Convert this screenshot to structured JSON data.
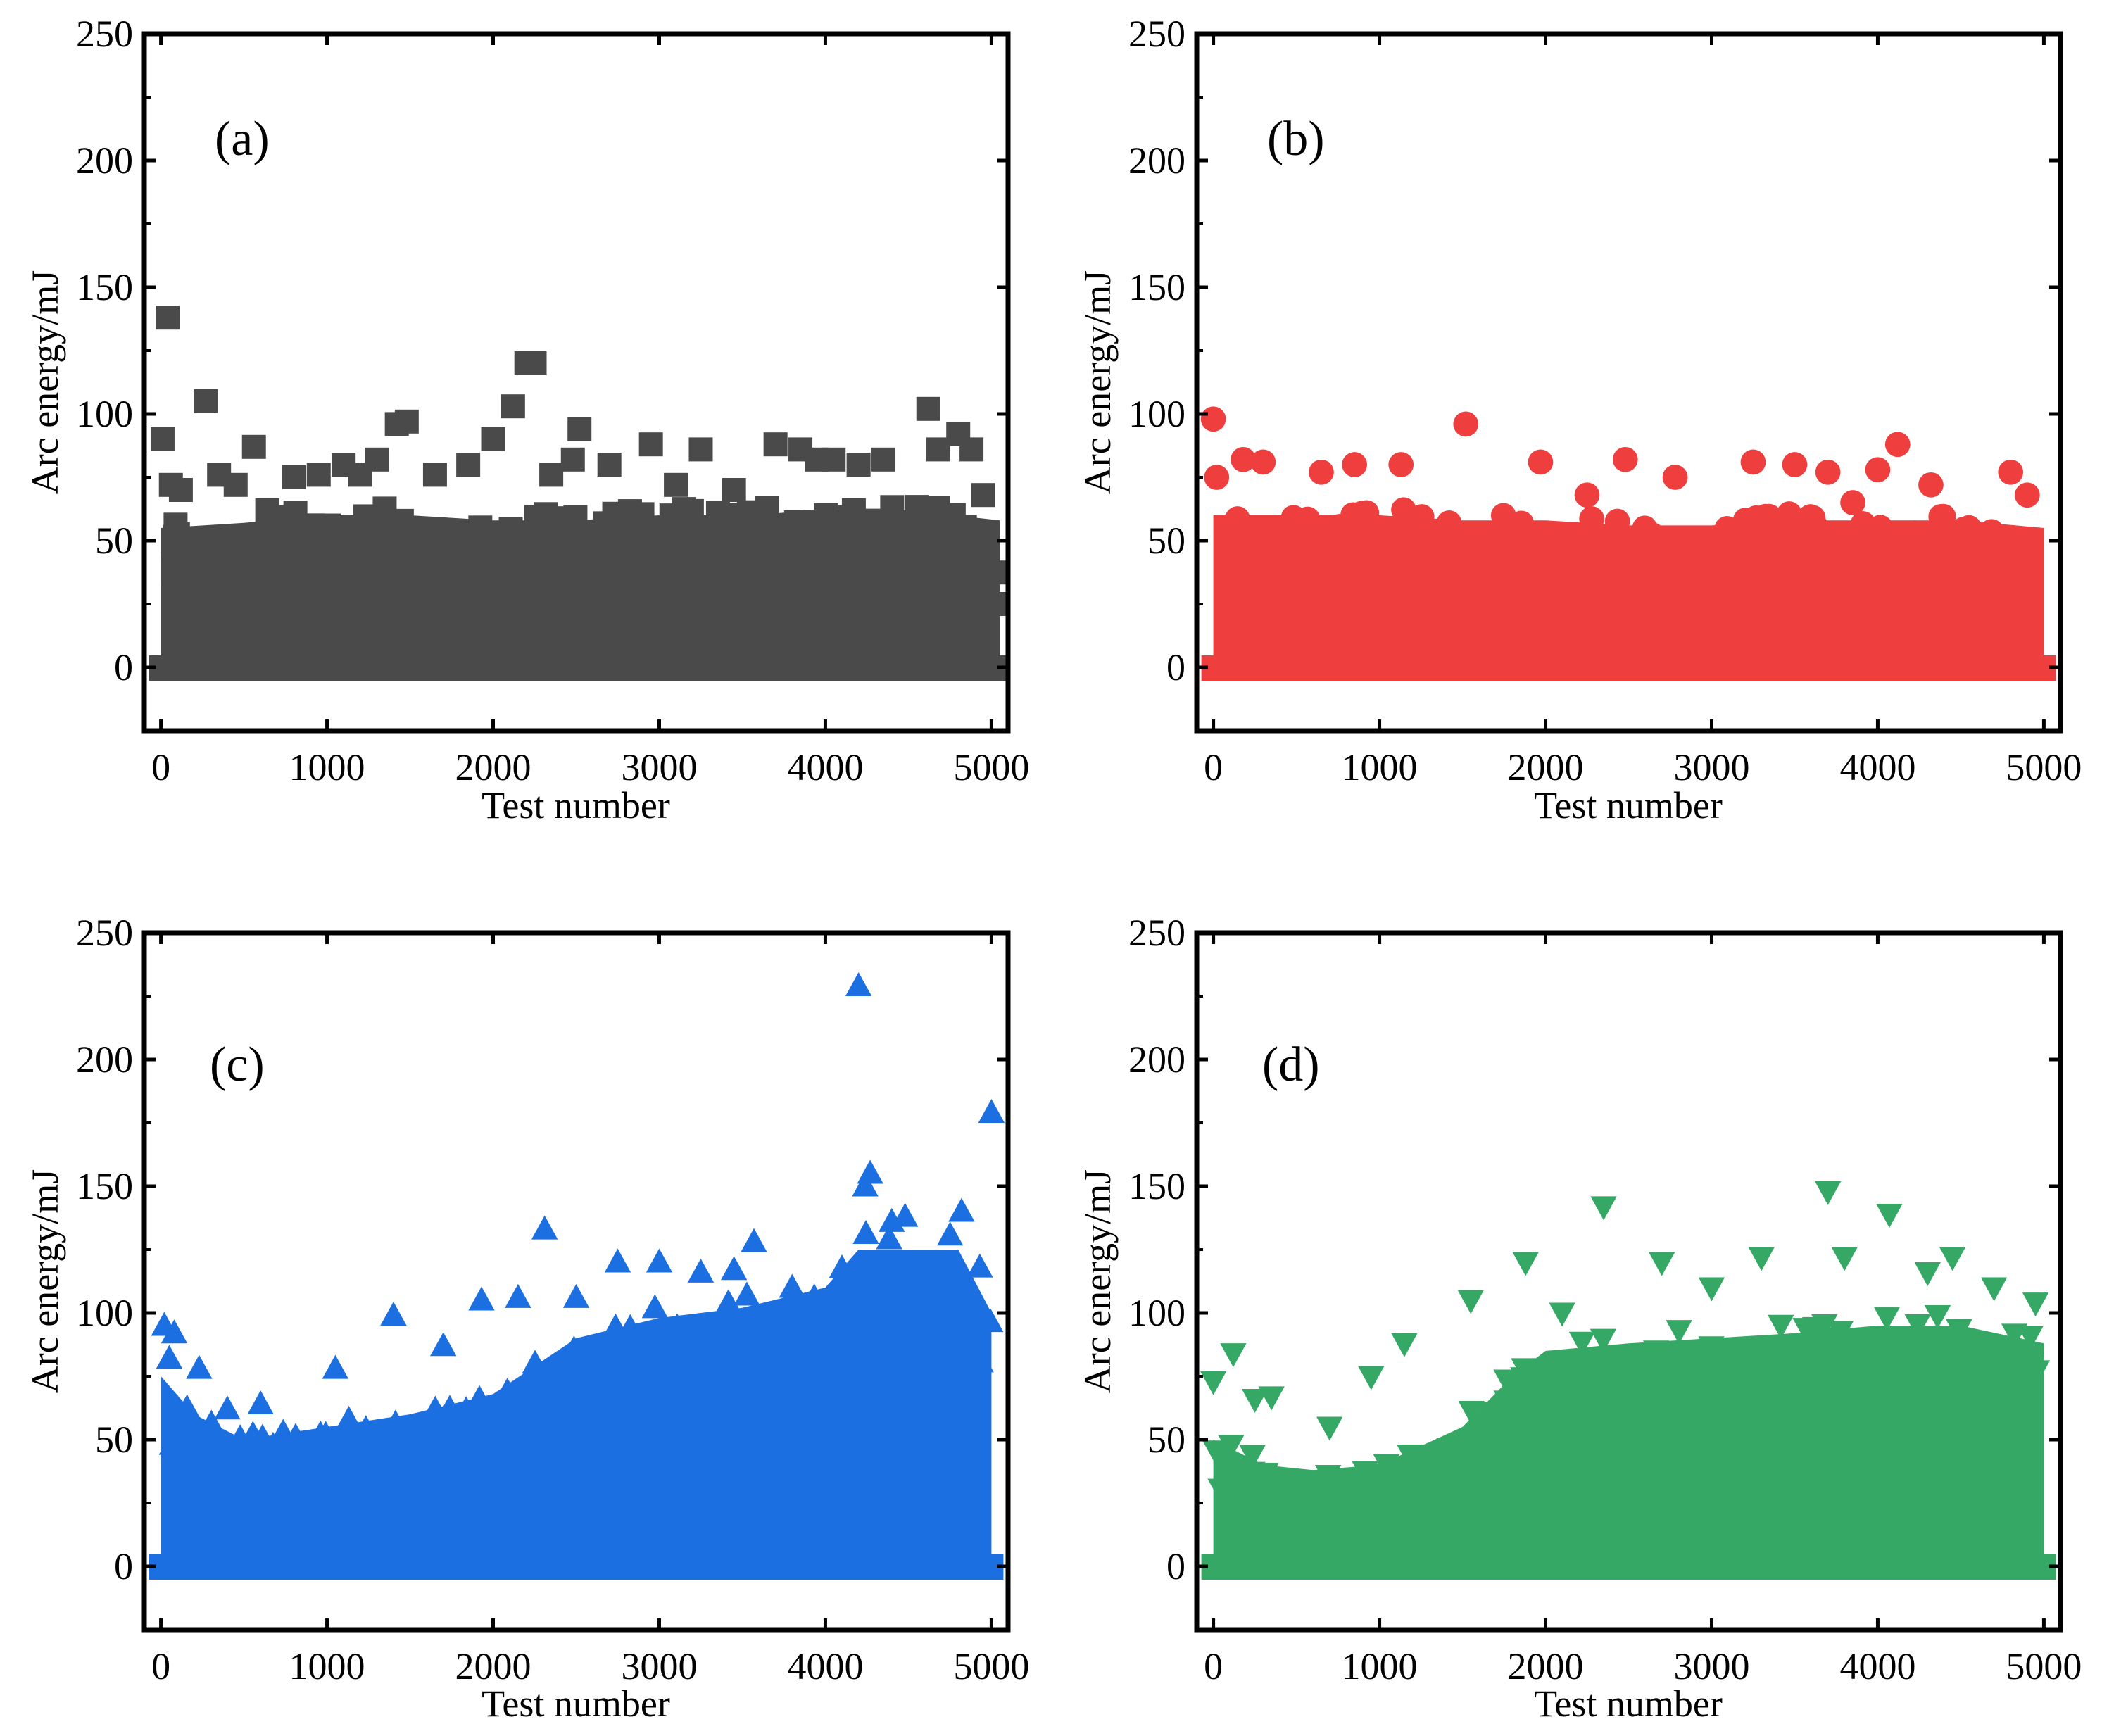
{
  "figure": {
    "background": "#ffffff"
  },
  "chart_data": [
    {
      "id": "a",
      "type": "scatter",
      "panel_label": "(a)",
      "marker": "square",
      "color": "#4a4a4a",
      "xlabel": "Test number",
      "ylabel": "Arc energy/mJ",
      "xlim": [
        -100,
        5100
      ],
      "ylim": [
        -25,
        250
      ],
      "xticks": [
        0,
        1000,
        2000,
        3000,
        4000,
        5000
      ],
      "yticks": [
        0,
        50,
        100,
        150,
        200,
        250
      ],
      "bulk": {
        "x": [
          0,
          5050
        ],
        "envelope_x": [
          0,
          500,
          1000,
          1500,
          2000,
          2500,
          3000,
          3500,
          4000,
          4500,
          5050
        ],
        "envelope_y": [
          55,
          57,
          60,
          60,
          58,
          58,
          60,
          60,
          62,
          62,
          58
        ]
      },
      "points": [
        {
          "x": 40,
          "y": 138
        },
        {
          "x": 10,
          "y": 90
        },
        {
          "x": 60,
          "y": 72
        },
        {
          "x": 120,
          "y": 70
        },
        {
          "x": 270,
          "y": 105
        },
        {
          "x": 350,
          "y": 76
        },
        {
          "x": 450,
          "y": 72
        },
        {
          "x": 560,
          "y": 87
        },
        {
          "x": 640,
          "y": 62
        },
        {
          "x": 800,
          "y": 75
        },
        {
          "x": 950,
          "y": 76
        },
        {
          "x": 1100,
          "y": 80
        },
        {
          "x": 1200,
          "y": 76
        },
        {
          "x": 1300,
          "y": 82
        },
        {
          "x": 1420,
          "y": 96
        },
        {
          "x": 1480,
          "y": 97
        },
        {
          "x": 1650,
          "y": 76
        },
        {
          "x": 1850,
          "y": 80
        },
        {
          "x": 2000,
          "y": 90
        },
        {
          "x": 2120,
          "y": 103
        },
        {
          "x": 2200,
          "y": 120
        },
        {
          "x": 2250,
          "y": 120
        },
        {
          "x": 2350,
          "y": 76
        },
        {
          "x": 2480,
          "y": 82
        },
        {
          "x": 2520,
          "y": 94
        },
        {
          "x": 2700,
          "y": 80
        },
        {
          "x": 2950,
          "y": 88
        },
        {
          "x": 3100,
          "y": 72
        },
        {
          "x": 3250,
          "y": 86
        },
        {
          "x": 3450,
          "y": 70
        },
        {
          "x": 3700,
          "y": 88
        },
        {
          "x": 3850,
          "y": 86
        },
        {
          "x": 3950,
          "y": 82
        },
        {
          "x": 4050,
          "y": 82
        },
        {
          "x": 4200,
          "y": 80
        },
        {
          "x": 4350,
          "y": 82
        },
        {
          "x": 4620,
          "y": 102
        },
        {
          "x": 4680,
          "y": 86
        },
        {
          "x": 4800,
          "y": 92
        },
        {
          "x": 4880,
          "y": 86
        },
        {
          "x": 4950,
          "y": 68
        },
        {
          "x": 5050,
          "y": 25
        }
      ]
    },
    {
      "id": "b",
      "type": "scatter",
      "panel_label": "(b)",
      "marker": "circle",
      "color": "#ee3e3e",
      "xlabel": "Test number",
      "ylabel": "Arc energy/mJ",
      "xlim": [
        -100,
        5100
      ],
      "ylim": [
        -25,
        250
      ],
      "xticks": [
        0,
        1000,
        2000,
        3000,
        4000,
        5000
      ],
      "yticks": [
        0,
        50,
        100,
        150,
        200,
        250
      ],
      "bulk": {
        "x": [
          0,
          5000
        ],
        "envelope_x": [
          0,
          500,
          1000,
          1500,
          2000,
          2500,
          3000,
          3500,
          4000,
          4500,
          5000
        ],
        "envelope_y": [
          60,
          60,
          60,
          58,
          58,
          56,
          56,
          58,
          58,
          58,
          55
        ]
      },
      "points": [
        {
          "x": 0,
          "y": 98
        },
        {
          "x": 20,
          "y": 75
        },
        {
          "x": 180,
          "y": 82
        },
        {
          "x": 300,
          "y": 81
        },
        {
          "x": 650,
          "y": 77
        },
        {
          "x": 850,
          "y": 80
        },
        {
          "x": 1130,
          "y": 80
        },
        {
          "x": 1520,
          "y": 96
        },
        {
          "x": 1970,
          "y": 81
        },
        {
          "x": 2250,
          "y": 68
        },
        {
          "x": 2480,
          "y": 82
        },
        {
          "x": 2780,
          "y": 75
        },
        {
          "x": 3250,
          "y": 81
        },
        {
          "x": 3500,
          "y": 80
        },
        {
          "x": 3700,
          "y": 77
        },
        {
          "x": 3850,
          "y": 65
        },
        {
          "x": 4000,
          "y": 78
        },
        {
          "x": 4120,
          "y": 88
        },
        {
          "x": 4320,
          "y": 72
        },
        {
          "x": 4800,
          "y": 77
        },
        {
          "x": 4900,
          "y": 68
        }
      ]
    },
    {
      "id": "c",
      "type": "scatter",
      "panel_label": "(c)",
      "marker": "triangle-up",
      "color": "#1b6fe0",
      "xlabel": "Test number",
      "ylabel": "Arc energy/mJ",
      "xlim": [
        -100,
        5100
      ],
      "ylim": [
        -25,
        250
      ],
      "xticks": [
        0,
        1000,
        2000,
        3000,
        4000,
        5000
      ],
      "yticks": [
        0,
        50,
        100,
        150,
        200,
        250
      ],
      "bulk": {
        "x": [
          0,
          5000
        ],
        "envelope_x": [
          0,
          200,
          500,
          1000,
          1500,
          2000,
          2500,
          3000,
          3500,
          4000,
          4200,
          4500,
          4800,
          5000
        ],
        "envelope_y": [
          75,
          60,
          50,
          55,
          60,
          68,
          90,
          98,
          102,
          110,
          125,
          125,
          125,
          100
        ]
      },
      "points": [
        {
          "x": 20,
          "y": 95
        },
        {
          "x": 80,
          "y": 92
        },
        {
          "x": 50,
          "y": 82
        },
        {
          "x": 230,
          "y": 78
        },
        {
          "x": 400,
          "y": 62
        },
        {
          "x": 600,
          "y": 64
        },
        {
          "x": 1050,
          "y": 78
        },
        {
          "x": 1400,
          "y": 99
        },
        {
          "x": 1700,
          "y": 87
        },
        {
          "x": 1930,
          "y": 105
        },
        {
          "x": 2150,
          "y": 106
        },
        {
          "x": 2310,
          "y": 133
        },
        {
          "x": 2500,
          "y": 106
        },
        {
          "x": 2750,
          "y": 120
        },
        {
          "x": 3000,
          "y": 120
        },
        {
          "x": 3250,
          "y": 116
        },
        {
          "x": 3450,
          "y": 117
        },
        {
          "x": 3570,
          "y": 128
        },
        {
          "x": 3800,
          "y": 110
        },
        {
          "x": 4200,
          "y": 229
        },
        {
          "x": 4240,
          "y": 150
        },
        {
          "x": 4270,
          "y": 155
        },
        {
          "x": 4400,
          "y": 136
        },
        {
          "x": 4480,
          "y": 138
        },
        {
          "x": 4820,
          "y": 140
        },
        {
          "x": 4930,
          "y": 118
        },
        {
          "x": 5000,
          "y": 179
        }
      ]
    },
    {
      "id": "d",
      "type": "scatter",
      "panel_label": "(d)",
      "marker": "triangle-down",
      "color": "#36a865",
      "xlabel": "Test number",
      "ylabel": "Arc energy/mJ",
      "xlim": [
        -100,
        5100
      ],
      "ylim": [
        -25,
        250
      ],
      "xticks": [
        0,
        1000,
        2000,
        3000,
        4000,
        5000
      ],
      "yticks": [
        0,
        50,
        100,
        150,
        200,
        250
      ],
      "bulk": {
        "x": [
          0,
          5000
        ],
        "envelope_x": [
          0,
          300,
          600,
          1000,
          1500,
          1800,
          2000,
          2500,
          3000,
          3500,
          4000,
          4500,
          5000
        ],
        "envelope_y": [
          50,
          40,
          38,
          40,
          55,
          75,
          85,
          88,
          90,
          92,
          95,
          95,
          88
        ]
      },
      "points": [
        {
          "x": 0,
          "y": 73
        },
        {
          "x": 120,
          "y": 84
        },
        {
          "x": 250,
          "y": 66
        },
        {
          "x": 350,
          "y": 67
        },
        {
          "x": 700,
          "y": 55
        },
        {
          "x": 950,
          "y": 75
        },
        {
          "x": 1150,
          "y": 88
        },
        {
          "x": 1550,
          "y": 105
        },
        {
          "x": 1880,
          "y": 120
        },
        {
          "x": 2100,
          "y": 100
        },
        {
          "x": 2350,
          "y": 142
        },
        {
          "x": 2700,
          "y": 120
        },
        {
          "x": 3000,
          "y": 110
        },
        {
          "x": 3300,
          "y": 122
        },
        {
          "x": 3700,
          "y": 148
        },
        {
          "x": 3800,
          "y": 122
        },
        {
          "x": 4070,
          "y": 139
        },
        {
          "x": 4300,
          "y": 116
        },
        {
          "x": 4450,
          "y": 122
        },
        {
          "x": 4700,
          "y": 110
        },
        {
          "x": 4950,
          "y": 104
        }
      ]
    }
  ]
}
